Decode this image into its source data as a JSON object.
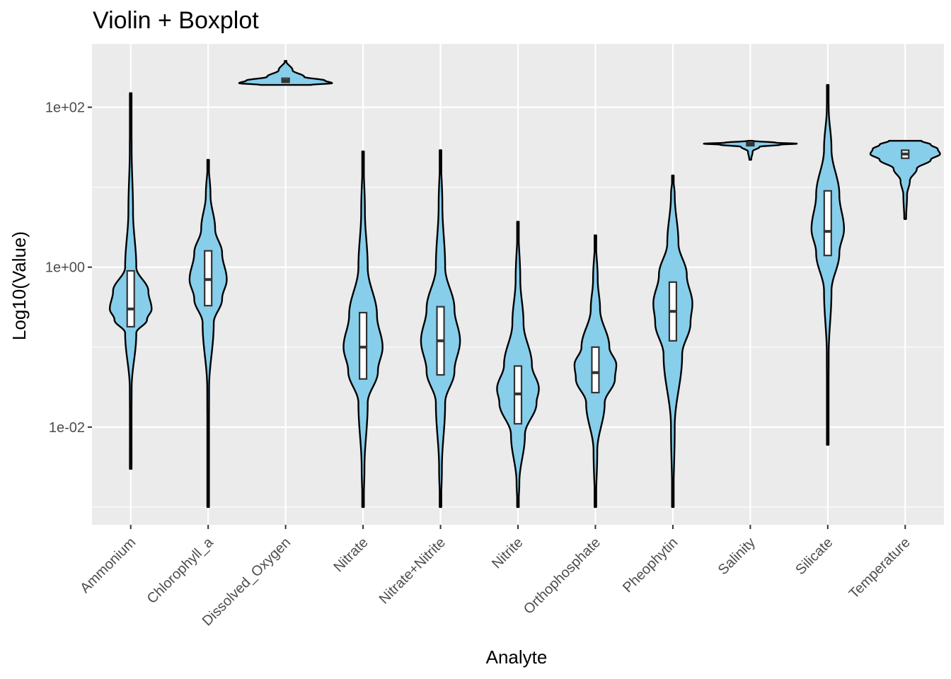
{
  "chart_data": {
    "type": "violin",
    "title": "Violin + Boxplot",
    "xlabel": "Analyte",
    "ylabel": "Log10(Value)",
    "y_scale": "log10",
    "ylim": [
      0.0006,
      620
    ],
    "y_ticks": [
      {
        "value": 100,
        "label": "1e+02"
      },
      {
        "value": 1,
        "label": "1e+00"
      },
      {
        "value": 0.01,
        "label": "1e-02"
      }
    ],
    "grid": true,
    "fill_color": "#87ceeb",
    "panel_color": "#ebebeb",
    "categories": [
      "Ammonium",
      "Chlorophyll_a",
      "Dissolved_Oxygen",
      "Nitrate",
      "Nitrate+Nitrite",
      "Nitrite",
      "Orthophosphate",
      "Pheophytin",
      "Salinity",
      "Silicate",
      "Temperature"
    ],
    "series": [
      {
        "category": "Ammonium",
        "min": 0.003,
        "q1": 0.18,
        "median": 0.3,
        "q3": 0.9,
        "max": 150,
        "profile": [
          [
            0.003,
            0.005
          ],
          [
            0.03,
            0.02
          ],
          [
            0.15,
            0.12
          ],
          [
            0.22,
            0.35
          ],
          [
            0.3,
            0.45
          ],
          [
            0.5,
            0.38
          ],
          [
            1,
            0.12
          ],
          [
            5,
            0.05
          ],
          [
            30,
            0.02
          ],
          [
            150,
            0.005
          ]
        ]
      },
      {
        "category": "Chlorophyll_a",
        "min": 0.001,
        "q1": 0.33,
        "median": 0.7,
        "q3": 1.6,
        "max": 22,
        "profile": [
          [
            0.001,
            0.005
          ],
          [
            0.03,
            0.02
          ],
          [
            0.2,
            0.12
          ],
          [
            0.4,
            0.3
          ],
          [
            0.7,
            0.4
          ],
          [
            1.5,
            0.3
          ],
          [
            3,
            0.15
          ],
          [
            8,
            0.05
          ],
          [
            22,
            0.005
          ]
        ]
      },
      {
        "category": "Dissolved_Oxygen",
        "min": 190,
        "q1": 205,
        "median": 215,
        "q3": 230,
        "max": 380,
        "profile": [
          [
            190,
            0.55
          ],
          [
            200,
            1
          ],
          [
            215,
            0.85
          ],
          [
            240,
            0.4
          ],
          [
            290,
            0.15
          ],
          [
            380,
            0.01
          ]
        ]
      },
      {
        "category": "Nitrate",
        "min": 0.001,
        "q1": 0.04,
        "median": 0.1,
        "q3": 0.27,
        "max": 28,
        "profile": [
          [
            0.001,
            0.01
          ],
          [
            0.003,
            0.03
          ],
          [
            0.02,
            0.1
          ],
          [
            0.05,
            0.32
          ],
          [
            0.1,
            0.42
          ],
          [
            0.25,
            0.3
          ],
          [
            1,
            0.1
          ],
          [
            5,
            0.04
          ],
          [
            28,
            0.005
          ]
        ]
      },
      {
        "category": "Nitrate+Nitrite",
        "min": 0.001,
        "q1": 0.045,
        "median": 0.12,
        "q3": 0.32,
        "max": 29,
        "profile": [
          [
            0.001,
            0.01
          ],
          [
            0.003,
            0.03
          ],
          [
            0.02,
            0.1
          ],
          [
            0.05,
            0.3
          ],
          [
            0.12,
            0.42
          ],
          [
            0.3,
            0.3
          ],
          [
            1,
            0.1
          ],
          [
            6,
            0.04
          ],
          [
            29,
            0.005
          ]
        ]
      },
      {
        "category": "Nitrite",
        "min": 0.001,
        "q1": 0.011,
        "median": 0.026,
        "q3": 0.058,
        "max": 3.7,
        "profile": [
          [
            0.001,
            0.01
          ],
          [
            0.002,
            0.03
          ],
          [
            0.008,
            0.15
          ],
          [
            0.02,
            0.4
          ],
          [
            0.03,
            0.45
          ],
          [
            0.06,
            0.3
          ],
          [
            0.2,
            0.12
          ],
          [
            0.7,
            0.05
          ],
          [
            3.7,
            0.005
          ]
        ]
      },
      {
        "category": "Orthophosphate",
        "min": 0.001,
        "q1": 0.027,
        "median": 0.048,
        "q3": 0.1,
        "max": 2.5,
        "profile": [
          [
            0.001,
            0.01
          ],
          [
            0.005,
            0.04
          ],
          [
            0.02,
            0.2
          ],
          [
            0.04,
            0.42
          ],
          [
            0.06,
            0.45
          ],
          [
            0.1,
            0.3
          ],
          [
            0.3,
            0.1
          ],
          [
            0.7,
            0.05
          ],
          [
            2.5,
            0.005
          ]
        ]
      },
      {
        "category": "Pheophytin",
        "min": 0.001,
        "q1": 0.12,
        "median": 0.28,
        "q3": 0.65,
        "max": 14,
        "profile": [
          [
            0.001,
            0.01
          ],
          [
            0.01,
            0.04
          ],
          [
            0.08,
            0.2
          ],
          [
            0.2,
            0.38
          ],
          [
            0.35,
            0.42
          ],
          [
            0.8,
            0.3
          ],
          [
            2,
            0.12
          ],
          [
            8,
            0.04
          ],
          [
            14,
            0.005
          ]
        ]
      },
      {
        "category": "Salinity",
        "min": 22,
        "q1": 33,
        "median": 35,
        "q3": 36,
        "max": 38,
        "profile": [
          [
            22,
            0.02
          ],
          [
            28,
            0.05
          ],
          [
            32,
            0.2
          ],
          [
            34,
            0.65
          ],
          [
            35,
            1
          ],
          [
            36,
            0.55
          ],
          [
            38,
            0.05
          ]
        ]
      },
      {
        "category": "Silicate",
        "min": 0.006,
        "q1": 1.4,
        "median": 2.8,
        "q3": 9,
        "max": 190,
        "profile": [
          [
            0.006,
            0.01
          ],
          [
            0.08,
            0.02
          ],
          [
            0.5,
            0.08
          ],
          [
            1.5,
            0.25
          ],
          [
            3,
            0.35
          ],
          [
            8,
            0.25
          ],
          [
            30,
            0.08
          ],
          [
            100,
            0.02
          ],
          [
            190,
            0.005
          ]
        ]
      },
      {
        "category": "Temperature",
        "min": 4,
        "q1": 23,
        "median": 26,
        "q3": 29,
        "max": 38,
        "profile": [
          [
            4,
            0.02
          ],
          [
            8,
            0.04
          ],
          [
            12,
            0.1
          ],
          [
            17,
            0.25
          ],
          [
            22,
            0.55
          ],
          [
            26,
            0.75
          ],
          [
            30,
            0.7
          ],
          [
            34,
            0.55
          ],
          [
            38,
            0.35
          ]
        ]
      }
    ]
  }
}
